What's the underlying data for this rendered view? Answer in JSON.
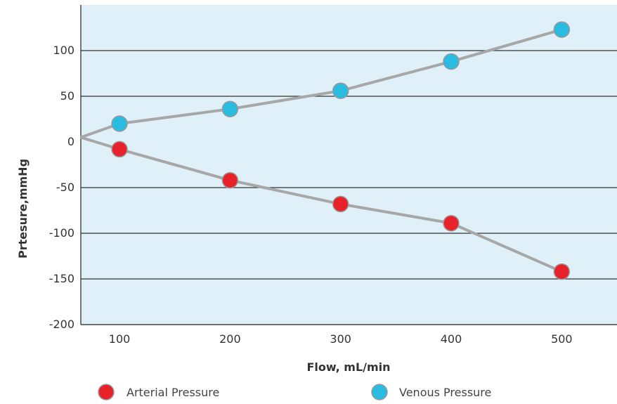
{
  "chart_data": {
    "type": "line",
    "xlabel": "Flow, mL/min",
    "ylabel": "Prtesure,mmHg",
    "xlim": [
      65,
      550
    ],
    "ylim": [
      -200,
      150
    ],
    "x_ticks": [
      "100",
      "200",
      "300",
      "400",
      "500"
    ],
    "y_ticks": [
      "100",
      "50",
      "0",
      "-50",
      "-100",
      "-150",
      "-200"
    ],
    "grid": "horizontal",
    "legend_position": "bottom",
    "plot_background": "#dff0f9",
    "line_color": "#a7a7a7",
    "origin": {
      "x": 65,
      "y": 5
    },
    "series": [
      {
        "name": "Venous Pressure",
        "color": "#29bce0",
        "x": [
          100,
          200,
          300,
          400,
          500
        ],
        "y": [
          20,
          36,
          56,
          88,
          123
        ]
      },
      {
        "name": "Arterial Pressure",
        "color": "#e8222b",
        "x": [
          100,
          200,
          300,
          400,
          500
        ],
        "y": [
          -8,
          -42,
          -68,
          -89,
          -142
        ]
      }
    ]
  }
}
